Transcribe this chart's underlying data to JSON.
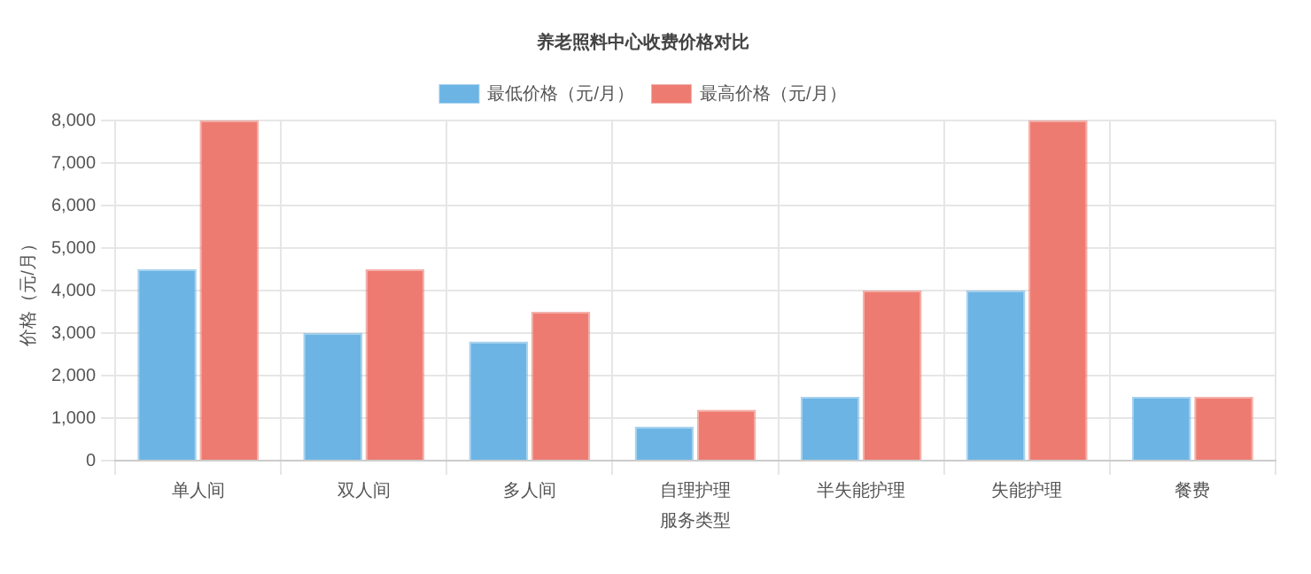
{
  "chart_data": {
    "type": "bar",
    "title": "养老照料中心收费价格对比",
    "xlabel": "服务类型",
    "ylabel": "价格（元/月）",
    "categories": [
      "单人间",
      "双人间",
      "多人间",
      "自理护理",
      "半失能护理",
      "失能护理",
      "餐费"
    ],
    "series": [
      {
        "name": "最低价格（元/月）",
        "color": "#6cb4e4",
        "values": [
          4500,
          3000,
          2800,
          800,
          1500,
          4000,
          1500
        ]
      },
      {
        "name": "最高价格（元/月）",
        "color": "#ee7b71",
        "values": [
          8000,
          4500,
          3500,
          1200,
          4000,
          8000,
          1500
        ]
      }
    ],
    "ylim": [
      0,
      8000
    ],
    "yticks": [
      {
        "value": 0,
        "label": "0"
      },
      {
        "value": 1000,
        "label": "1,000"
      },
      {
        "value": 2000,
        "label": "2,000"
      },
      {
        "value": 3000,
        "label": "3,000"
      },
      {
        "value": 4000,
        "label": "4,000"
      },
      {
        "value": 5000,
        "label": "5,000"
      },
      {
        "value": 6000,
        "label": "6,000"
      },
      {
        "value": 7000,
        "label": "7,000"
      },
      {
        "value": 8000,
        "label": "8,000"
      }
    ],
    "grid": true,
    "legend": "top"
  }
}
